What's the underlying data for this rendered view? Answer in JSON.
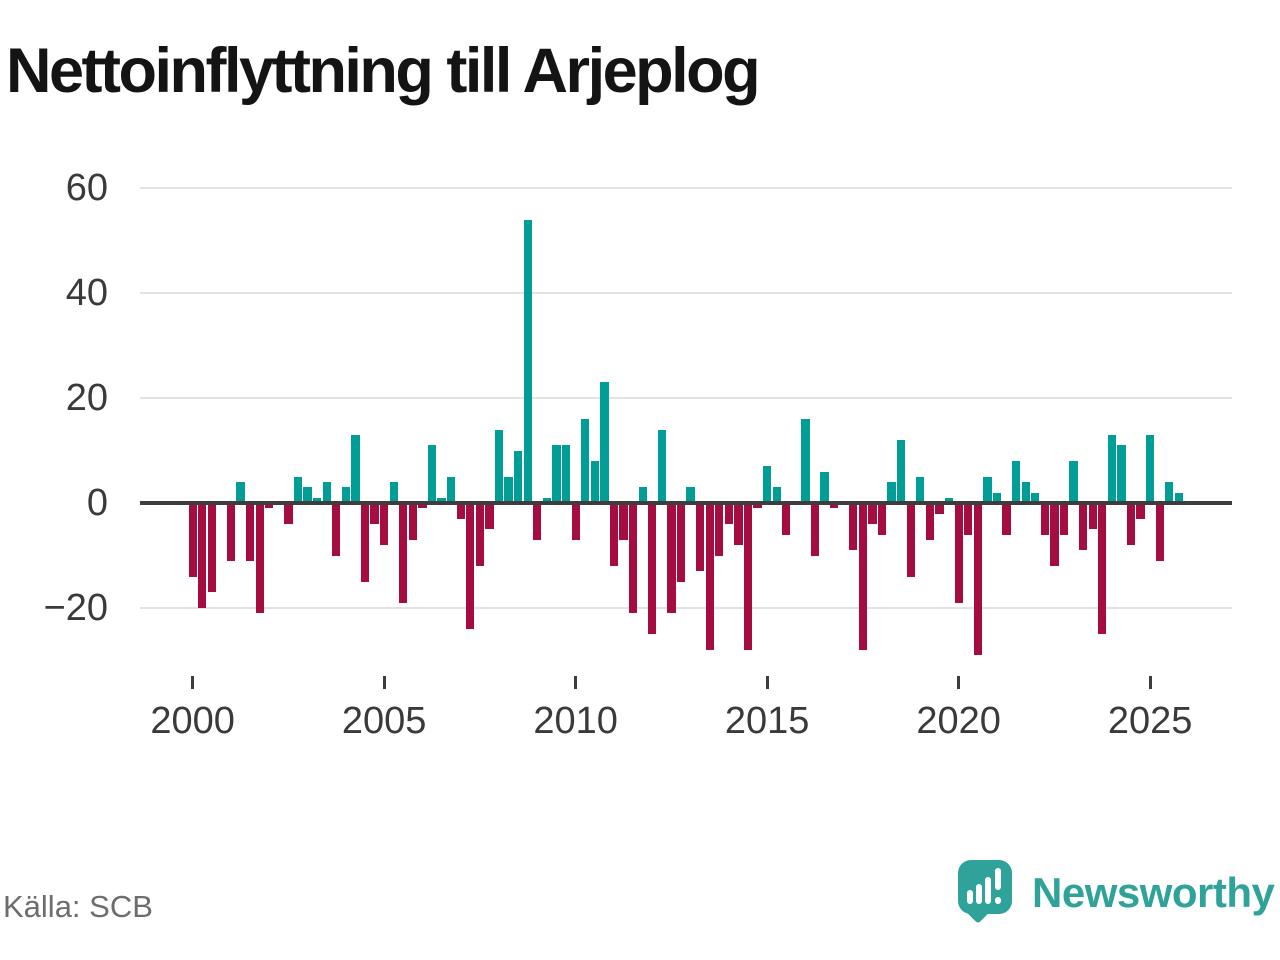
{
  "title": "Nettoinflyttning till Arjeplog",
  "footer": {
    "source": "Källa: SCB",
    "brand": "Newsworthy"
  },
  "colors": {
    "positive": "#009e96",
    "negative": "#a50d40",
    "axis": "#3d3d3d",
    "grid": "#e2e2e2",
    "brand_teal": "#2fa39a",
    "label_text": "#3a3a3a",
    "muted_text": "#6d6d6d"
  },
  "chart_data": {
    "type": "bar",
    "title": "Nettoinflyttning till Arjeplog",
    "xlabel": "",
    "ylabel": "",
    "frequency": "quarterly",
    "x_start": {
      "year": 2000,
      "quarter": 1
    },
    "x_end": {
      "year": 2025,
      "quarter": 4
    },
    "xticks": [
      2000,
      2005,
      2010,
      2015,
      2020,
      2025
    ],
    "yticks": [
      60,
      40,
      20,
      0,
      -20
    ],
    "ylim": [
      -31,
      62
    ],
    "grid": true,
    "legend": "none",
    "series": [
      {
        "name": "Nettoinflyttning",
        "values": [
          -14,
          -20,
          -17,
          0,
          -11,
          4,
          -11,
          -21,
          -1,
          0,
          -4,
          5,
          3,
          1,
          4,
          -10,
          3,
          13,
          -15,
          -4,
          -8,
          4,
          -19,
          -7,
          -1,
          11,
          1,
          5,
          -3,
          -24,
          -12,
          -5,
          14,
          5,
          10,
          54,
          -7,
          1,
          11,
          11,
          -7,
          16,
          8,
          23,
          -12,
          -7,
          -21,
          3,
          -25,
          14,
          -21,
          -15,
          3,
          -13,
          -28,
          -10,
          -4,
          -8,
          -28,
          -1,
          7,
          3,
          -6,
          0,
          16,
          -10,
          6,
          -1,
          0,
          -9,
          -28,
          -4,
          -6,
          4,
          12,
          -14,
          5,
          -7,
          -2,
          1,
          -19,
          -6,
          -29,
          5,
          2,
          -6,
          8,
          4,
          2,
          -6,
          -12,
          -6,
          8,
          -9,
          -5,
          -25,
          13,
          11,
          -8,
          -3,
          13,
          -11,
          4,
          2
        ]
      }
    ]
  }
}
